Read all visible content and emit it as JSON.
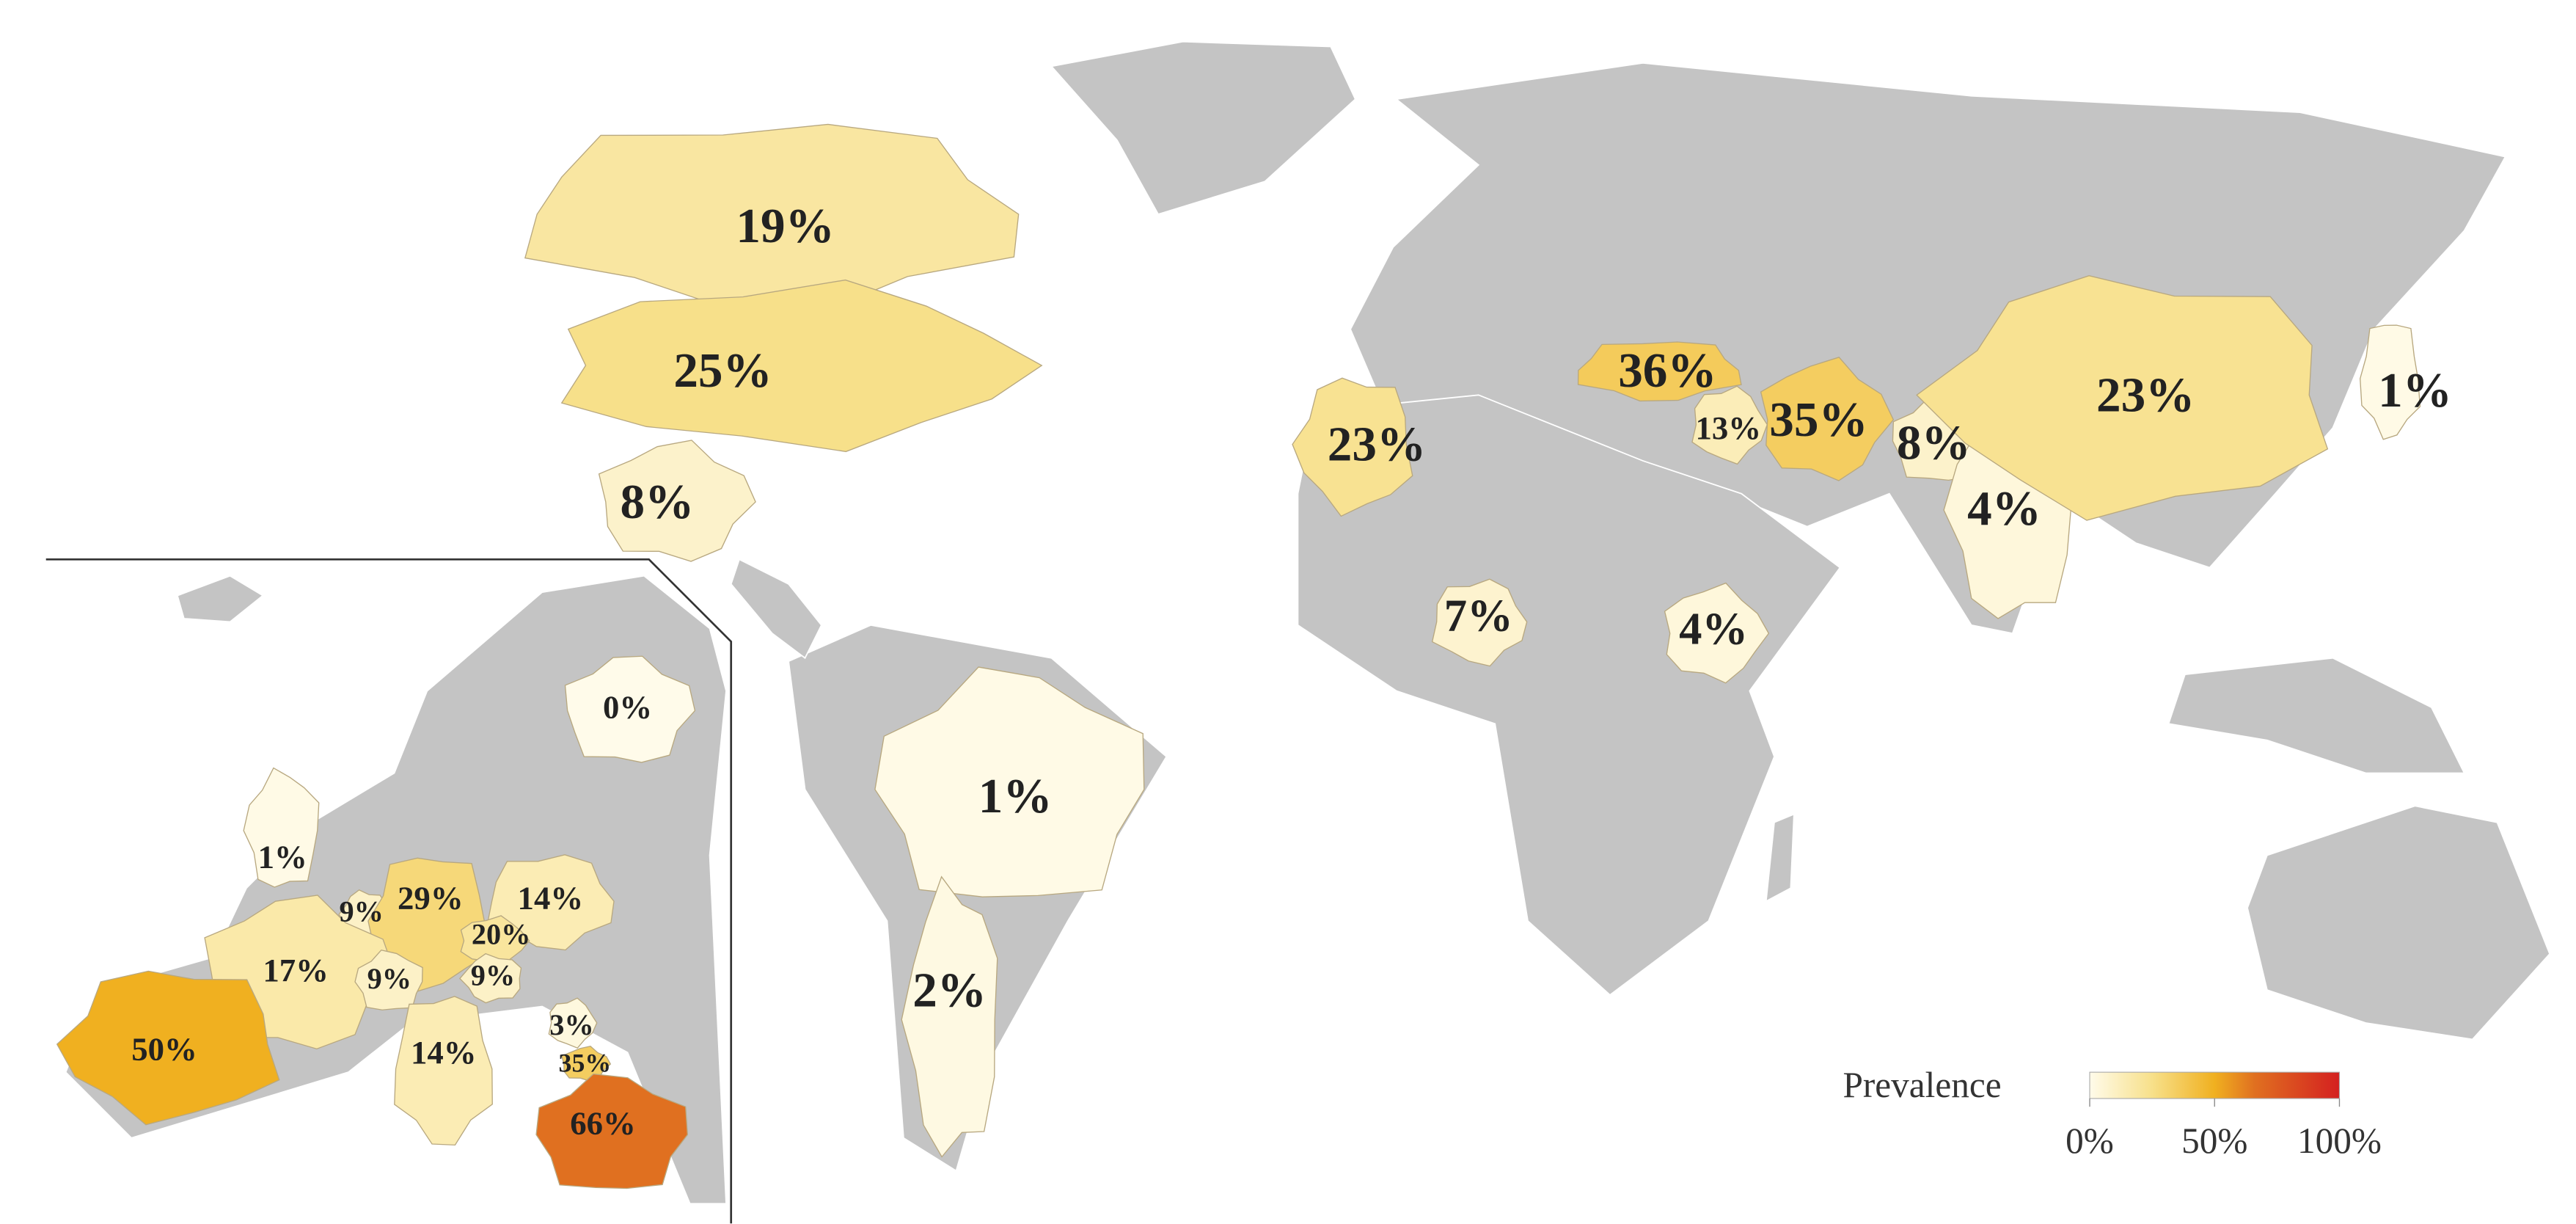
{
  "legend": {
    "title": "Prevalence",
    "ticks": [
      {
        "value": 0,
        "label": "0%"
      },
      {
        "value": 50,
        "label": "50%"
      },
      {
        "value": 100,
        "label": "100%"
      }
    ]
  },
  "regions": [
    {
      "label": "19%",
      "value": 19
    },
    {
      "label": "25%",
      "value": 25
    },
    {
      "label": "8%",
      "value": 8
    },
    {
      "label": "1%",
      "value": 1
    },
    {
      "label": "2%",
      "value": 2
    },
    {
      "label": "23%",
      "value": 23
    },
    {
      "label": "36%",
      "value": 36
    },
    {
      "label": "13%",
      "value": 13
    },
    {
      "label": "35%",
      "value": 35
    },
    {
      "label": "8%",
      "value": 8
    },
    {
      "label": "4%",
      "value": 4
    },
    {
      "label": "23%",
      "value": 23
    },
    {
      "label": "1%",
      "value": 1
    },
    {
      "label": "7%",
      "value": 7
    },
    {
      "label": "4%",
      "value": 4
    },
    {
      "label": "0%",
      "value": 0
    },
    {
      "label": "1%",
      "value": 1
    },
    {
      "label": "9%",
      "value": 9
    },
    {
      "label": "29%",
      "value": 29
    },
    {
      "label": "14%",
      "value": 14
    },
    {
      "label": "20%",
      "value": 20
    },
    {
      "label": "17%",
      "value": 17
    },
    {
      "label": "9%",
      "value": 9
    },
    {
      "label": "9%",
      "value": 9
    },
    {
      "label": "50%",
      "value": 50
    },
    {
      "label": "14%",
      "value": 14
    },
    {
      "label": "3%",
      "value": 3
    },
    {
      "label": "35%",
      "value": 35
    },
    {
      "label": "66%",
      "value": 66
    }
  ]
}
